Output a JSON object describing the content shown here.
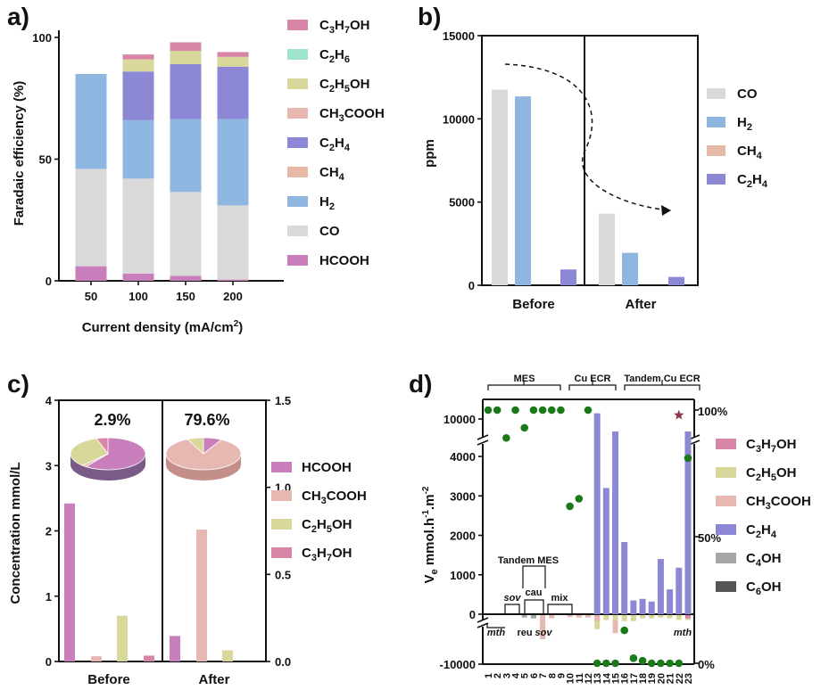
{
  "chart_data": [
    {
      "panel": "a)",
      "type": "bar",
      "stacked": true,
      "categories": [
        "50",
        "100",
        "150",
        "200"
      ],
      "xlabel_main": "Current density (mA/cm",
      "xlabel_sup": "2",
      "xlabel_end": ")",
      "ylabel": "Faradaic efficiency (%)",
      "ylim": [
        0,
        100
      ],
      "yticks": [
        "0",
        "50",
        "100"
      ],
      "series": [
        {
          "name": "HCOOH",
          "label_parts": [
            [
              "HCOOH",
              ""
            ]
          ],
          "color": "#c97fbb",
          "values": [
            6,
            3,
            2,
            0.5
          ]
        },
        {
          "name": "CO",
          "label_parts": [
            [
              "CO",
              ""
            ]
          ],
          "color": "#d9d9d9",
          "values": [
            40,
            39,
            34.5,
            30.5
          ]
        },
        {
          "name": "CH4",
          "label_parts": [
            [
              "CH",
              ""
            ],
            [
              "4",
              "sub"
            ]
          ],
          "color": "#e6b9a6",
          "values": [
            0,
            0,
            0,
            0
          ]
        },
        {
          "name": "H2",
          "label_parts": [
            [
              "H",
              ""
            ],
            [
              "2",
              "sub"
            ]
          ],
          "color": "#8fb6e0",
          "values": [
            39,
            24,
            30,
            35.5
          ]
        },
        {
          "name": "C2H4",
          "label_parts": [
            [
              "C",
              ""
            ],
            [
              "2",
              "sub"
            ],
            [
              "H",
              ""
            ],
            [
              "4",
              "sub"
            ]
          ],
          "color": "#8c88d6",
          "values": [
            0,
            20,
            22.5,
            21.5
          ]
        },
        {
          "name": "CH3COOH",
          "label_parts": [
            [
              "CH",
              ""
            ],
            [
              "3",
              "sub"
            ],
            [
              "COOH",
              ""
            ]
          ],
          "color": "#e7b7b2",
          "values": [
            0,
            0,
            0,
            0
          ]
        },
        {
          "name": "C2H5OH",
          "label_parts": [
            [
              "C",
              ""
            ],
            [
              "2",
              "sub"
            ],
            [
              "H",
              ""
            ],
            [
              "5",
              "sub"
            ],
            [
              "OH",
              ""
            ]
          ],
          "color": "#d8d89a",
          "values": [
            0,
            5,
            5.5,
            4
          ]
        },
        {
          "name": "C2H6",
          "label_parts": [
            [
              "C",
              ""
            ],
            [
              "2",
              "sub"
            ],
            [
              "H",
              ""
            ],
            [
              "6",
              "sub"
            ]
          ],
          "color": "#9fe3cf",
          "values": [
            0,
            0,
            0,
            0
          ]
        },
        {
          "name": "C3H7OH",
          "label_parts": [
            [
              "C",
              ""
            ],
            [
              "3",
              "sub"
            ],
            [
              "H",
              ""
            ],
            [
              "7",
              "sub"
            ],
            [
              "OH",
              ""
            ]
          ],
          "color": "#d786a8",
          "values": [
            0,
            2,
            3.5,
            2
          ]
        }
      ],
      "legend_order": [
        "C3H7OH",
        "C2H6",
        "C2H5OH",
        "CH3COOH",
        "C2H4",
        "CH4",
        "H2",
        "CO",
        "HCOOH"
      ]
    },
    {
      "panel": "b)",
      "type": "bar",
      "groups": [
        "Before",
        "After"
      ],
      "ylabel": "ppm",
      "ylim": [
        0,
        15000
      ],
      "yticks": [
        "0",
        "5000",
        "10000",
        "15000"
      ],
      "series": [
        {
          "name": "CO",
          "label_parts": [
            [
              "CO",
              ""
            ]
          ],
          "color": "#d9d9d9",
          "values": [
            11750,
            4300
          ]
        },
        {
          "name": "H2",
          "label_parts": [
            [
              "H",
              ""
            ],
            [
              "2",
              "sub"
            ]
          ],
          "color": "#8fb6e0",
          "values": [
            11350,
            1950
          ]
        },
        {
          "name": "CH4",
          "label_parts": [
            [
              "CH",
              ""
            ],
            [
              "4",
              "sub"
            ]
          ],
          "color": "#e6b9a6",
          "values": [
            0,
            0
          ]
        },
        {
          "name": "C2H4",
          "label_parts": [
            [
              "C",
              ""
            ],
            [
              "2",
              "sub"
            ],
            [
              "H",
              ""
            ],
            [
              "4",
              "sub"
            ]
          ],
          "color": "#8c88d6",
          "values": [
            950,
            500
          ]
        }
      ]
    },
    {
      "panel": "c)",
      "type": "bar",
      "groups": [
        "Before",
        "After"
      ],
      "ylabel": "Concentration mmol/L",
      "ylim": [
        0,
        4
      ],
      "yticks": [
        "0",
        "1",
        "2",
        "3",
        "4"
      ],
      "y2lim": [
        0,
        1.5
      ],
      "y2ticks": [
        "0.0",
        "0.5",
        "1.0",
        "1.5"
      ],
      "series": [
        {
          "name": "HCOOH",
          "label_parts": [
            [
              "HCOOH",
              ""
            ]
          ],
          "color": "#c97fbb",
          "values": [
            2.42,
            0.39
          ]
        },
        {
          "name": "CH3COOH",
          "label_parts": [
            [
              "CH",
              ""
            ],
            [
              "3",
              "sub"
            ],
            [
              "COOH",
              ""
            ]
          ],
          "color": "#e7b7b2",
          "values": [
            0.08,
            2.02
          ]
        },
        {
          "name": "C2H5OH",
          "label_parts": [
            [
              "C",
              ""
            ],
            [
              "2",
              "sub"
            ],
            [
              "H",
              ""
            ],
            [
              "5",
              "sub"
            ],
            [
              "OH",
              ""
            ]
          ],
          "color": "#d8d89a",
          "values": [
            0.7,
            0.17
          ]
        },
        {
          "name": "C3H7OH",
          "label_parts": [
            [
              "C",
              ""
            ],
            [
              "3",
              "sub"
            ],
            [
              "H",
              ""
            ],
            [
              "7",
              "sub"
            ],
            [
              "OH",
              ""
            ]
          ],
          "color": "#d786a8",
          "values": [
            0.09,
            0
          ]
        }
      ],
      "pies": [
        {
          "label": "2.9%",
          "slices": [
            {
              "name": "HCOOH",
              "value": 60
            },
            {
              "name": "CH3COOH",
              "value": 2
            },
            {
              "name": "C2H5OH",
              "value": 33
            },
            {
              "name": "C3H7OH",
              "value": 5
            }
          ]
        },
        {
          "label": "79.6%",
          "slices": [
            {
              "name": "HCOOH",
              "value": 8
            },
            {
              "name": "CH3COOH",
              "value": 85
            },
            {
              "name": "C2H5OH",
              "value": 7
            },
            {
              "name": "C3H7OH",
              "value": 0
            }
          ]
        }
      ]
    },
    {
      "panel": "d)",
      "type": "bar",
      "x": [
        "1",
        "2",
        "3",
        "4",
        "5",
        "6",
        "7",
        "8",
        "9",
        "10",
        "11",
        "12",
        "13",
        "14",
        "15",
        "16",
        "17",
        "18",
        "19",
        "20",
        "21",
        "22",
        "23"
      ],
      "ylabel_main": "V",
      "ylabel_sub": "e",
      "ylabel_rest": " mmol.h",
      "ylabel_sup1": "-1",
      "ylabel_m": ".m",
      "ylabel_sup2": "-2",
      "yticks": [
        "-10000",
        "0",
        "1000",
        "2000",
        "3000",
        "4000",
        "10000"
      ],
      "y2ticks": [
        "0%",
        "50%",
        "100%"
      ],
      "groups_top": [
        "MES",
        "Cu ECR",
        "Tandem Cu ECR"
      ],
      "annotations": {
        "tandem_mes": "Tandem MES",
        "sov1": "sov",
        "cau": "cau",
        "mix": "mix",
        "reu": "reu",
        "sov2": "sov",
        "mth1": "mth",
        "mth2": "mth"
      },
      "series": [
        {
          "name": "C3H7OH",
          "label_parts": [
            [
              "C",
              ""
            ],
            [
              "3",
              "sub"
            ],
            [
              "H",
              ""
            ],
            [
              "7",
              "sub"
            ],
            [
              "OH",
              ""
            ]
          ],
          "color": "#d786a8"
        },
        {
          "name": "C2H5OH",
          "label_parts": [
            [
              "C",
              ""
            ],
            [
              "2",
              "sub"
            ],
            [
              "H",
              ""
            ],
            [
              "5",
              "sub"
            ],
            [
              "OH",
              ""
            ]
          ],
          "color": "#d8d89a"
        },
        {
          "name": "CH3COOH",
          "label_parts": [
            [
              "CH",
              ""
            ],
            [
              "3",
              "sub"
            ],
            [
              "COOH",
              ""
            ]
          ],
          "color": "#e7b7b2"
        },
        {
          "name": "C2H4",
          "label_parts": [
            [
              "C",
              ""
            ],
            [
              "2",
              "sub"
            ],
            [
              "H",
              ""
            ],
            [
              "4",
              "sub"
            ]
          ],
          "color": "#8c88d6",
          "values": [
            0,
            0,
            0,
            0,
            0,
            0,
            0,
            0,
            0,
            0,
            0,
            0,
            10400,
            3200,
            8000,
            1830,
            350,
            390,
            320,
            1400,
            630,
            1180,
            8000
          ]
        },
        {
          "name": "C4OH",
          "label_parts": [
            [
              "C",
              ""
            ],
            [
              "4",
              "sub"
            ],
            [
              "OH",
              ""
            ]
          ],
          "color": "#a6a6a6"
        },
        {
          "name": "C6OH",
          "label_parts": [
            [
              "C",
              ""
            ],
            [
              "6",
              "sub"
            ],
            [
              "OH",
              ""
            ]
          ],
          "color": "#555555"
        }
      ],
      "selectivity_percent": [
        100,
        100,
        89,
        100,
        93,
        100,
        100,
        100,
        100,
        62,
        65,
        100,
        0,
        0,
        0,
        13,
        2,
        1,
        0,
        0,
        0,
        0,
        81
      ],
      "star_point": {
        "x": "22",
        "percent": 98
      }
    }
  ]
}
